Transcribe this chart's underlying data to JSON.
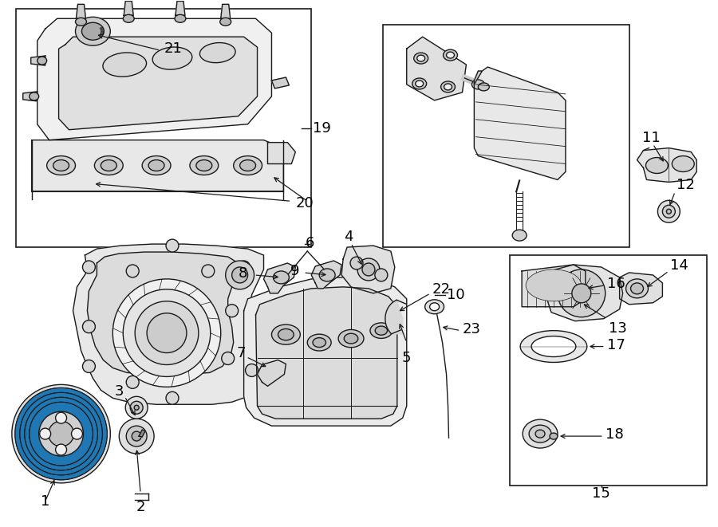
{
  "bg_color": "#ffffff",
  "line_color": "#1a1a1a",
  "fig_width": 9.0,
  "fig_height": 6.61,
  "dpi": 100,
  "font_size": 12,
  "lw": 1.0
}
